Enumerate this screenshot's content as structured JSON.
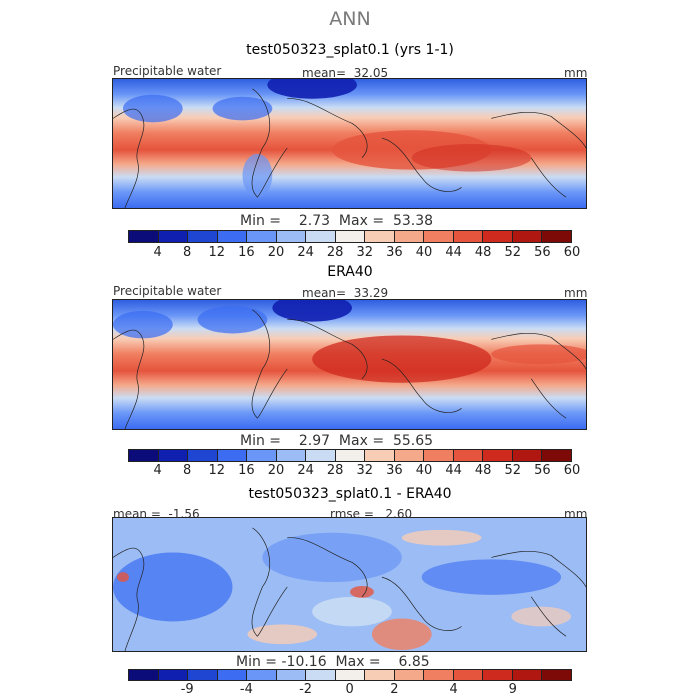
{
  "figure": {
    "title": "ANN"
  },
  "palette": [
    "#0b0b7a",
    "#0f1fb0",
    "#1e46d2",
    "#3b6cf2",
    "#6a96f7",
    "#9bbcf4",
    "#c9dcf4",
    "#f3f0ec",
    "#f8cdb6",
    "#f5a98b",
    "#f07e60",
    "#e5543d",
    "#cf2a1e",
    "#b01710",
    "#7d0a06"
  ],
  "diff_palette": [
    "#0b0b7a",
    "#0f1fb0",
    "#1e46d2",
    "#3b6cf2",
    "#6a96f7",
    "#9bbcf4",
    "#c9dcf4",
    "#f3f0ec",
    "#f8cdb6",
    "#f5a98b",
    "#f07e60",
    "#e5543d",
    "#cf2a1e",
    "#b01710",
    "#7d0a06"
  ],
  "panels": [
    {
      "title": "test050323_splat0.1 (yrs 1-1)",
      "var_label": "Precipitable water",
      "stat_label": "mean=",
      "stat_value": "32.05",
      "units": "mm",
      "min_label": "Min =",
      "min_value": "2.73",
      "max_label": "Max =",
      "max_value": "53.38",
      "colorbar_ticks": [
        "4",
        "8",
        "12",
        "16",
        "20",
        "24",
        "28",
        "32",
        "36",
        "40",
        "44",
        "48",
        "52",
        "56",
        "60"
      ]
    },
    {
      "title": "ERA40",
      "var_label": "Precipitable water",
      "stat_label": "mean=",
      "stat_value": "33.29",
      "units": "mm",
      "min_label": "Min =",
      "min_value": "2.97",
      "max_label": "Max =",
      "max_value": "55.65",
      "colorbar_ticks": [
        "4",
        "8",
        "12",
        "16",
        "20",
        "24",
        "28",
        "32",
        "36",
        "40",
        "44",
        "48",
        "52",
        "56",
        "60"
      ]
    },
    {
      "title": "test050323_splat0.1 - ERA40",
      "stat_label": "mean =",
      "stat_value": "-1.56",
      "rmse_label": "rmse =",
      "rmse_value": "2.60",
      "units": "mm",
      "min_label": "Min =",
      "min_value": "-10.16",
      "max_label": "Max =",
      "max_value": "6.85",
      "colorbar_ticks": [
        "-9",
        "-4",
        "-2",
        "0",
        "2",
        "4",
        "9"
      ]
    }
  ]
}
